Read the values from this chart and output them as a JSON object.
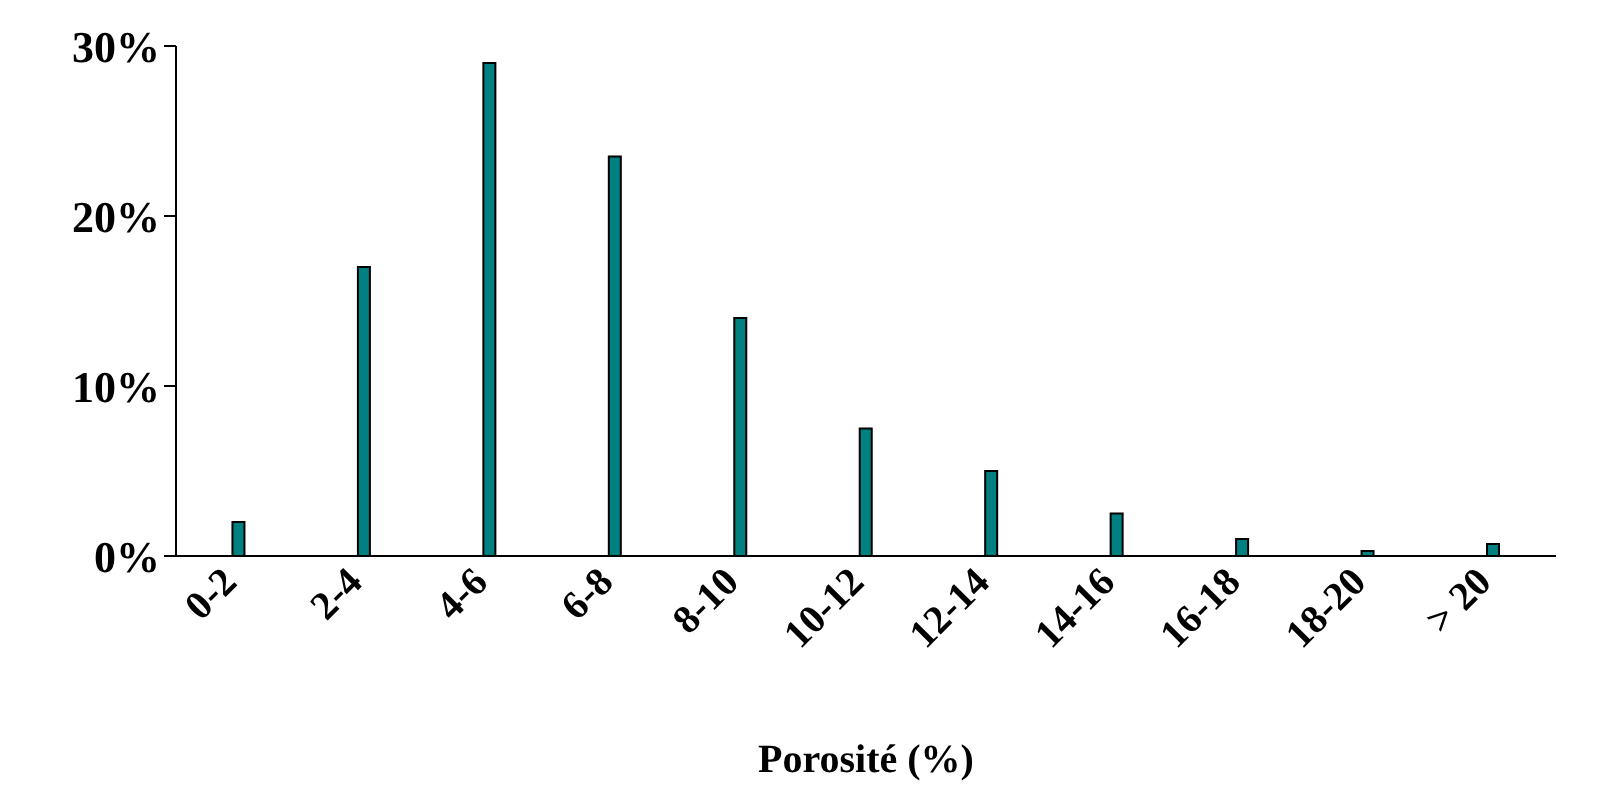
{
  "chart_data": {
    "type": "bar",
    "xlabel": "Porosité (%)",
    "categories": [
      "0-2",
      "2-4",
      "4-6",
      "6-8",
      "8-10",
      "10-12",
      "12-14",
      "14-16",
      "16-18",
      "18-20",
      "> 20"
    ],
    "values": [
      2,
      17,
      29,
      23.5,
      14,
      7.5,
      5,
      2.5,
      1,
      0.3,
      0.7
    ],
    "color": "#008080",
    "ylim": [
      0,
      30
    ],
    "yticks": [
      {
        "value": 0,
        "label": "0%"
      },
      {
        "value": 10,
        "label": "10%"
      },
      {
        "value": 20,
        "label": "20%"
      },
      {
        "value": 30,
        "label": "30%"
      }
    ],
    "grid": false,
    "legend": false
  }
}
